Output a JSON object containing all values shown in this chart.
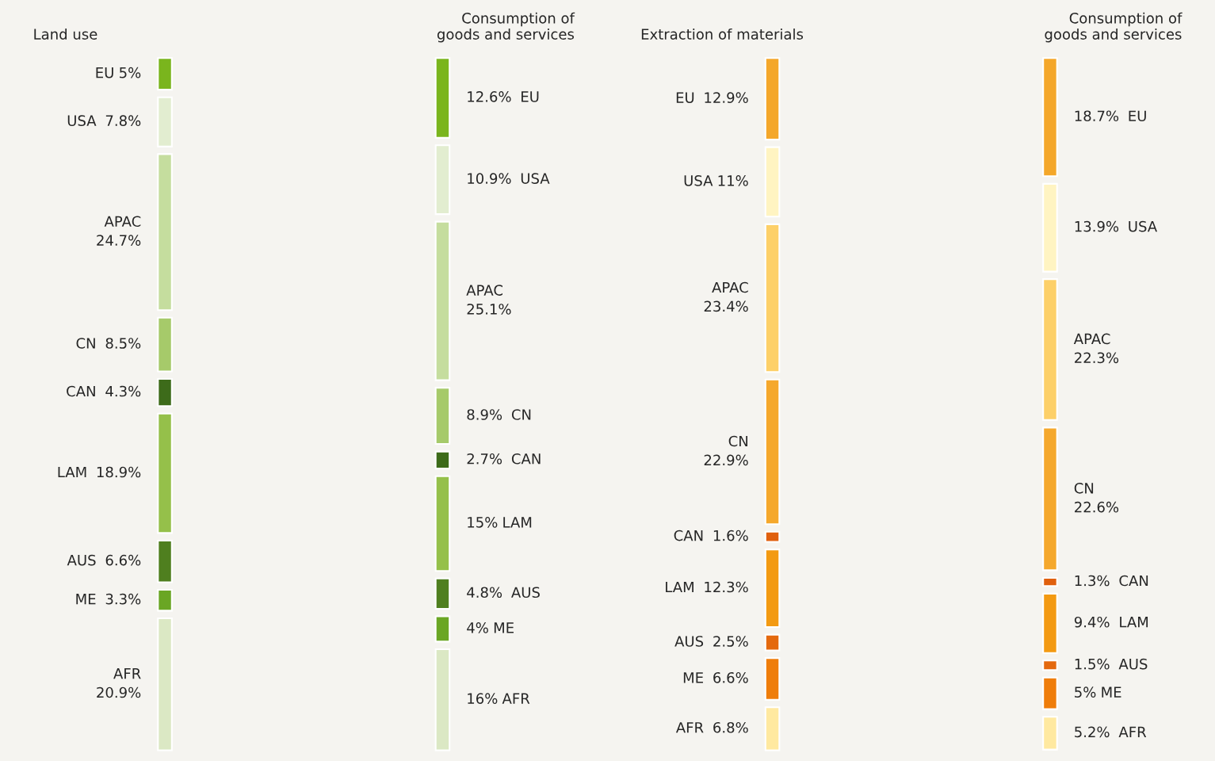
{
  "chart_data": [
    {
      "type": "other",
      "categories": [
        "EU",
        "USA",
        "APAC",
        "CN",
        "CAN",
        "LAM",
        "AUS",
        "ME",
        "AFR"
      ],
      "series": [
        {
          "name": "Land use",
          "values": [
            5,
            7.8,
            24.7,
            8.5,
            4.3,
            18.9,
            6.6,
            3.3,
            20.9
          ],
          "value_labels": [
            "5%",
            "7.8%",
            "24.7%",
            "8.5%",
            "4.3%",
            "18.9%",
            "6.6%",
            "3.3%",
            "20.9%"
          ],
          "colors": [
            "#7ab51d",
            "#e2edd0",
            "#c5dd9e",
            "#a6ca6a",
            "#3d6b1a",
            "#95c04a",
            "#4f7f1f",
            "#6aa624",
            "#dbe8c4"
          ]
        },
        {
          "name": "Consumption of\ngoods and services",
          "values": [
            12.6,
            10.9,
            25.1,
            8.9,
            2.7,
            15,
            4.8,
            4,
            16
          ],
          "value_labels": [
            "12.6%",
            "10.9%",
            "25.1%",
            "8.9%",
            "2.7%",
            "15%",
            "4.8%",
            "4%",
            "16%"
          ],
          "colors": [
            "#7ab51d",
            "#e2edd0",
            "#c5dd9e",
            "#a6ca6a",
            "#3d6b1a",
            "#95c04a",
            "#4f7f1f",
            "#6aa624",
            "#dbe8c4"
          ]
        }
      ]
    },
    {
      "type": "other",
      "categories": [
        "EU",
        "USA",
        "APAC",
        "CN",
        "CAN",
        "LAM",
        "AUS",
        "ME",
        "AFR"
      ],
      "series": [
        {
          "name": "Extraction of materials",
          "values": [
            12.9,
            11,
            23.4,
            22.9,
            1.6,
            12.3,
            2.5,
            6.6,
            6.8
          ],
          "value_labels": [
            "12.9%",
            "11%",
            "23.4%",
            "22.9%",
            "1.6%",
            "12.3%",
            "2.5%",
            "6.6%",
            "6.8%"
          ],
          "colors": [
            "#f4a72a",
            "#fff4c2",
            "#fdd068",
            "#f5a82c",
            "#e0600e",
            "#f39a12",
            "#e4690e",
            "#ef7d0a",
            "#ffe9a0"
          ]
        },
        {
          "name": "Consumption of\ngoods and services",
          "values": [
            18.7,
            13.9,
            22.3,
            22.6,
            1.3,
            9.4,
            1.5,
            5,
            5.2
          ],
          "value_labels": [
            "18.7%",
            "13.9%",
            "22.3%",
            "22.6%",
            "1.3%",
            "9.4%",
            "1.5%",
            "5%",
            "5.2%"
          ],
          "colors": [
            "#f4a72a",
            "#fff4c2",
            "#fdd068",
            "#f5a82c",
            "#e0600e",
            "#f39a12",
            "#e4690e",
            "#ef7d0a",
            "#ffe9a0"
          ]
        }
      ]
    }
  ]
}
